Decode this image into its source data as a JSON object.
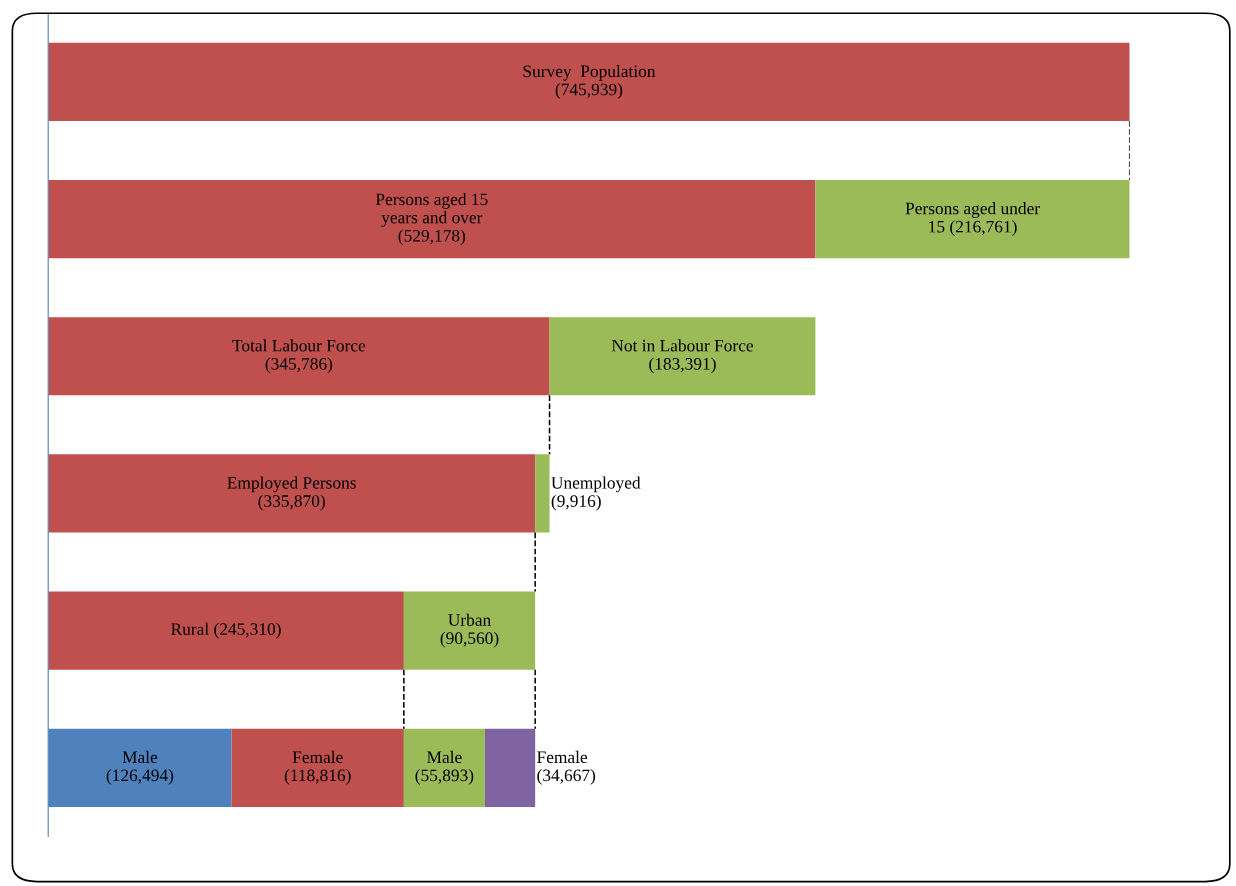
{
  "chart_data": {
    "type": "bar",
    "orientation": "horizontal",
    "stacked": true,
    "categories": [
      null,
      null,
      null,
      null,
      null,
      null
    ],
    "series": [
      {
        "color": "#4f81bd",
        "values": [
          null,
          null,
          null,
          null,
          null,
          126494
        ],
        "value_labels": [
          null,
          null,
          null,
          null,
          null,
          "Male\n(126,494)"
        ]
      },
      {
        "color": "#c0504d",
        "values": [
          745939,
          529178,
          345786,
          335870,
          245310,
          118816
        ],
        "value_labels": [
          "Survey  Population\n(745,939)",
          "Persons aged 15\nyears and over\n(529,178)",
          "Total Labour Force\n(345,786)",
          "Employed Persons\n(335,870)",
          "Rural (245,310)",
          "Female\n(118,816)"
        ]
      },
      {
        "color": "#9bbb59",
        "values": [
          null,
          216761,
          183391,
          9916,
          90560,
          55893
        ],
        "value_labels": [
          null,
          "Persons aged under\n15 (216,761)",
          "Not in Labour Force\n(183,391)",
          "Unemployed\n(9,916)",
          "Urban\n(90,560)",
          "Male\n(55,893)"
        ]
      },
      {
        "color": "#8064a2",
        "values": [
          null,
          null,
          null,
          null,
          null,
          34667
        ],
        "value_labels": [
          null,
          null,
          null,
          null,
          null,
          "Female\n(34,667)"
        ]
      }
    ]
  }
}
